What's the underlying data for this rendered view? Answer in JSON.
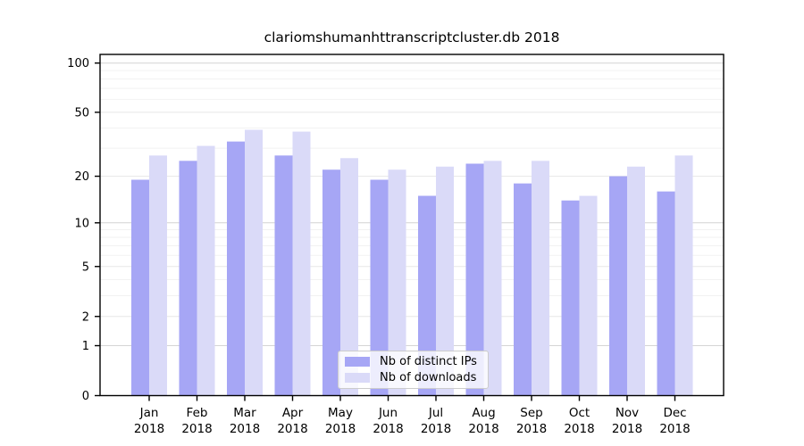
{
  "chart_data": {
    "type": "bar",
    "title": "clariomshumanhttranscriptcluster.db 2018",
    "categories": [
      "Jan 2018",
      "Feb 2018",
      "Mar 2018",
      "Apr 2018",
      "May 2018",
      "Jun 2018",
      "Jul 2018",
      "Aug 2018",
      "Sep 2018",
      "Oct 2018",
      "Nov 2018",
      "Dec 2018"
    ],
    "series": [
      {
        "name": "Nb of distinct IPs",
        "color": "#a6a6f5",
        "values": [
          19,
          25,
          33,
          27,
          22,
          19,
          15,
          24,
          18,
          14,
          20,
          16
        ]
      },
      {
        "name": "Nb of downloads",
        "color": "#dadaf8",
        "values": [
          27,
          31,
          39,
          38,
          26,
          22,
          23,
          25,
          25,
          15,
          23,
          27
        ]
      }
    ],
    "yscale": "log1p",
    "yticks": [
      0,
      1,
      2,
      5,
      10,
      20,
      50,
      100
    ],
    "ylim": [
      0,
      112
    ],
    "grid": "horizontal, major decades darker, minor integers faint",
    "legend_position": "inside lower-center"
  },
  "colors": {
    "axis": "#000000",
    "text": "#000000",
    "grid_major": "#d4d4d4",
    "grid_soft": "#e7e7e7",
    "grid_minor": "#f2f2f2",
    "legend_border": "#cccccc"
  }
}
